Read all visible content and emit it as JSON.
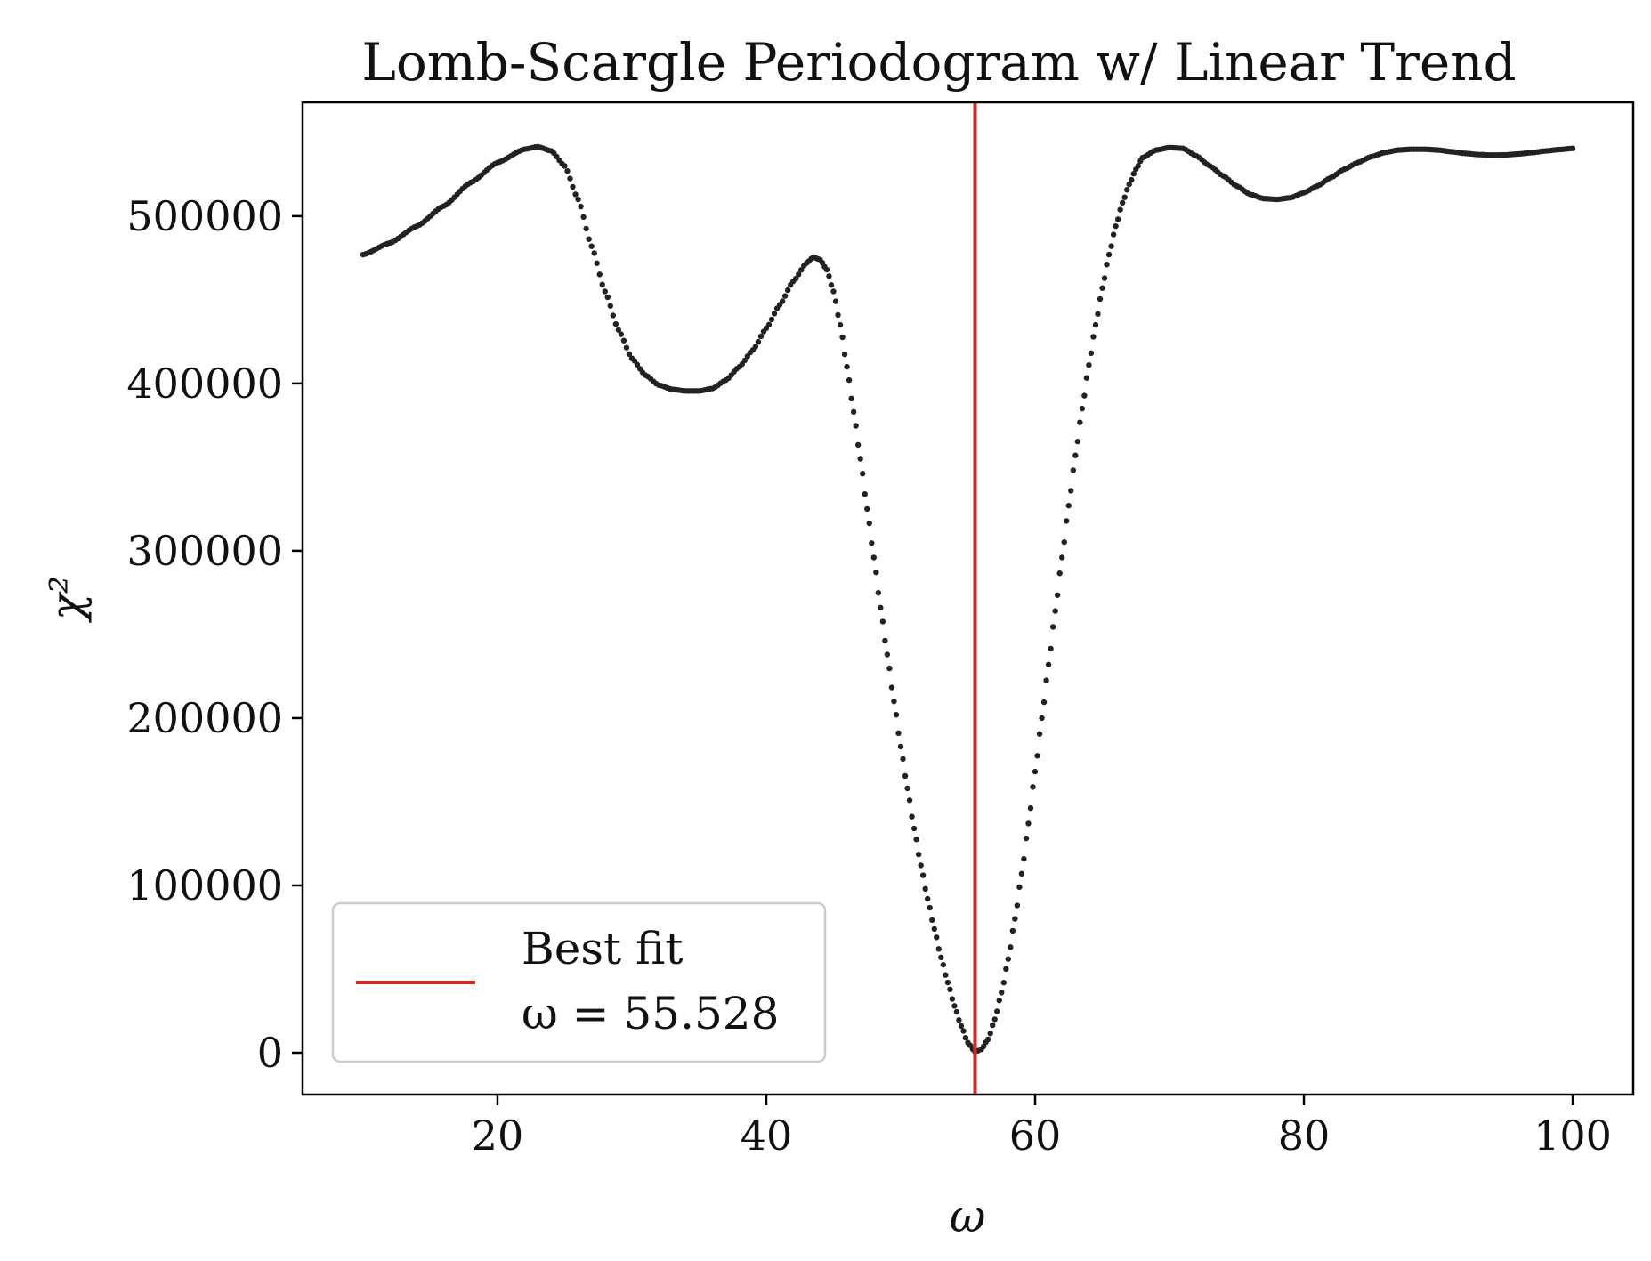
{
  "chart_data": {
    "type": "scatter",
    "title": "Lomb-Scargle Periodogram w/ Linear Trend",
    "xlabel": "ω",
    "ylabel": "χ²",
    "xlim": [
      5.5,
      104.5
    ],
    "ylim": [
      -25000,
      568000
    ],
    "x_ticks": [
      20,
      40,
      60,
      80,
      100
    ],
    "y_ticks": [
      0,
      100000,
      200000,
      300000,
      400000,
      500000
    ],
    "grid": false,
    "legend": {
      "placement": "lower-left",
      "entries": [
        {
          "line1": "Best fit",
          "line2": "ω = 55.528",
          "color": "#d62728"
        }
      ]
    },
    "best_fit_x": 55.528,
    "series": [
      {
        "color": "#222222",
        "points": [
          [
            10,
            477000
          ],
          [
            12,
            484000
          ],
          [
            14,
            494000
          ],
          [
            16,
            506000
          ],
          [
            18,
            520000
          ],
          [
            20,
            532000
          ],
          [
            22,
            540000
          ],
          [
            23,
            541500
          ],
          [
            24,
            539000
          ],
          [
            25,
            530000
          ],
          [
            26,
            510000
          ],
          [
            27,
            482000
          ],
          [
            28,
            455000
          ],
          [
            29,
            432000
          ],
          [
            30,
            415000
          ],
          [
            31,
            405000
          ],
          [
            32,
            399000
          ],
          [
            33,
            396500
          ],
          [
            34,
            395500
          ],
          [
            35,
            395500
          ],
          [
            36,
            397000
          ],
          [
            37,
            402000
          ],
          [
            38,
            410000
          ],
          [
            39,
            420000
          ],
          [
            40,
            433000
          ],
          [
            41,
            447000
          ],
          [
            42,
            461000
          ],
          [
            43,
            472000
          ],
          [
            43.5,
            475500
          ],
          [
            44,
            474000
          ],
          [
            44.5,
            468000
          ],
          [
            45,
            455000
          ],
          [
            45.5,
            435000
          ],
          [
            46,
            410000
          ],
          [
            46.5,
            383000
          ],
          [
            47,
            355000
          ],
          [
            47.5,
            325000
          ],
          [
            48,
            296000
          ],
          [
            48.5,
            266000
          ],
          [
            49,
            238000
          ],
          [
            49.5,
            210000
          ],
          [
            50,
            183000
          ],
          [
            50.5,
            158000
          ],
          [
            51,
            134000
          ],
          [
            51.5,
            112000
          ],
          [
            52,
            92000
          ],
          [
            52.5,
            74000
          ],
          [
            53,
            57000
          ],
          [
            53.5,
            42000
          ],
          [
            54,
            28000
          ],
          [
            54.5,
            16000
          ],
          [
            55,
            6000
          ],
          [
            55.528,
            500
          ],
          [
            56,
            2000
          ],
          [
            56.5,
            8000
          ],
          [
            57,
            20000
          ],
          [
            57.5,
            36000
          ],
          [
            58,
            56000
          ],
          [
            58.5,
            80000
          ],
          [
            59,
            107000
          ],
          [
            59.5,
            137000
          ],
          [
            60,
            168000
          ],
          [
            60.5,
            200000
          ],
          [
            61,
            232000
          ],
          [
            61.5,
            264000
          ],
          [
            62,
            296000
          ],
          [
            62.5,
            327000
          ],
          [
            63,
            357000
          ],
          [
            63.5,
            385000
          ],
          [
            64,
            411000
          ],
          [
            64.5,
            435000
          ],
          [
            65,
            457000
          ],
          [
            65.5,
            477000
          ],
          [
            66,
            494000
          ],
          [
            66.5,
            508000
          ],
          [
            67,
            519000
          ],
          [
            67.5,
            528000
          ],
          [
            68,
            535000
          ],
          [
            69,
            539500
          ],
          [
            70,
            541000
          ],
          [
            71,
            540500
          ],
          [
            72,
            536000
          ],
          [
            73,
            530000
          ],
          [
            74,
            524000
          ],
          [
            75,
            518000
          ],
          [
            76,
            513000
          ],
          [
            77,
            510500
          ],
          [
            78,
            510000
          ],
          [
            79,
            511000
          ],
          [
            80,
            514000
          ],
          [
            81,
            518000
          ],
          [
            82,
            523000
          ],
          [
            83,
            528000
          ],
          [
            84,
            532000
          ],
          [
            85,
            535500
          ],
          [
            86,
            538000
          ],
          [
            87,
            539500
          ],
          [
            88,
            540000
          ],
          [
            89,
            540000
          ],
          [
            90,
            539500
          ],
          [
            91,
            538500
          ],
          [
            92,
            537500
          ],
          [
            93,
            536800
          ],
          [
            94,
            536500
          ],
          [
            95,
            536600
          ],
          [
            96,
            537200
          ],
          [
            97,
            538000
          ],
          [
            98,
            539000
          ],
          [
            99,
            539800
          ],
          [
            100,
            540500
          ]
        ]
      }
    ]
  }
}
